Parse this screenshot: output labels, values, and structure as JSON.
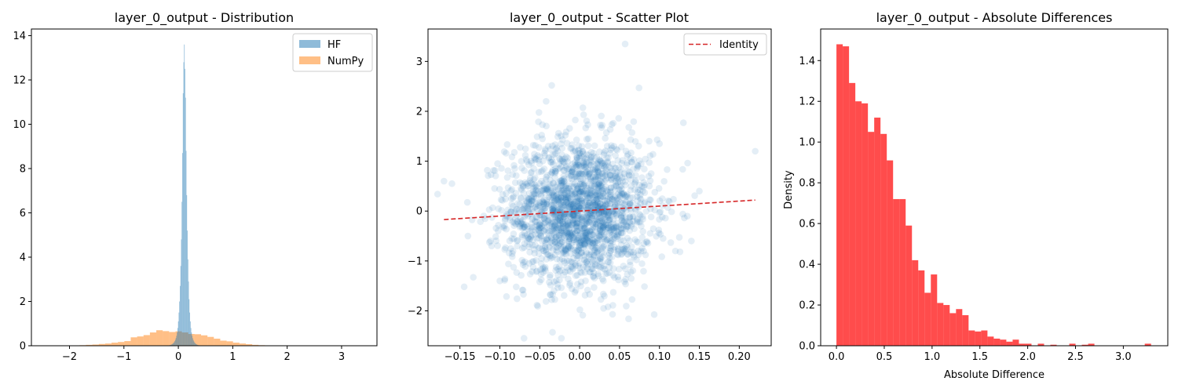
{
  "colors": {
    "hf": "#1f77b4",
    "numpy": "#ff7f0e",
    "scatter": "#1f77b4",
    "identity": "#d62728",
    "diff": "#ff0000"
  },
  "chart_data": [
    {
      "type": "histogram",
      "title": "layer_0_output - Distribution",
      "xlabel": "",
      "ylabel": "",
      "xlim": [
        -2.7,
        3.65
      ],
      "ylim": [
        0,
        14.3
      ],
      "xticks": [
        -2,
        -1,
        0,
        1,
        2,
        3
      ],
      "yticks": [
        0,
        2,
        4,
        6,
        8,
        10,
        12,
        14
      ],
      "legend": "top-right",
      "series": [
        {
          "name": "HF",
          "color": "#1f77b4",
          "alpha": 0.5,
          "bin_width": 0.011,
          "bin_start": -0.17,
          "density": [
            0.02,
            0.03,
            0.03,
            0.05,
            0.06,
            0.08,
            0.1,
            0.13,
            0.16,
            0.21,
            0.27,
            0.35,
            0.45,
            0.6,
            0.8,
            1.1,
            1.5,
            2.0,
            2.7,
            3.6,
            4.8,
            6.5,
            8.7,
            11.4,
            12.8,
            13.6,
            12.5,
            11.2,
            8.8,
            6.8,
            5.2,
            3.9,
            2.9,
            2.1,
            1.5,
            1.1,
            0.8,
            0.6,
            0.45,
            0.34,
            0.26,
            0.2,
            0.15,
            0.12,
            0.09,
            0.07,
            0.05,
            0.04,
            0.03,
            0.02,
            0.02,
            0.01
          ]
        },
        {
          "name": "NumPy",
          "color": "#ff7f0e",
          "alpha": 0.5,
          "bin_width": 0.1175,
          "bin_start": -2.52,
          "density": [
            0.003,
            0.003,
            0.005,
            0.008,
            0.012,
            0.018,
            0.025,
            0.04,
            0.055,
            0.08,
            0.1,
            0.14,
            0.17,
            0.21,
            0.38,
            0.42,
            0.48,
            0.6,
            0.7,
            0.66,
            0.62,
            0.65,
            0.6,
            0.53,
            0.52,
            0.47,
            0.4,
            0.32,
            0.23,
            0.2,
            0.14,
            0.1,
            0.07,
            0.04,
            0.025,
            0.018,
            0.012,
            0.008,
            0.005,
            0.003,
            0.002,
            0.001,
            0.001,
            0.001,
            0.001,
            0.001,
            0.001,
            0.001,
            0.001,
            0.001
          ]
        }
      ]
    },
    {
      "type": "scatter",
      "title": "layer_0_output - Scatter Plot",
      "xlabel": "",
      "ylabel": "",
      "xlim": [
        -0.19,
        0.24
      ],
      "ylim": [
        -2.7,
        3.65
      ],
      "xticks": [
        -0.15,
        -0.1,
        -0.05,
        0.0,
        0.05,
        0.1,
        0.15,
        0.2
      ],
      "xtick_labels": [
        "−0.15",
        "−0.10",
        "−0.05",
        "0.00",
        "0.05",
        "0.10",
        "0.15",
        "0.20"
      ],
      "yticks": [
        -2,
        -1,
        0,
        1,
        2,
        3
      ],
      "legend": "top-right",
      "points_color": "#1f77b4",
      "points_alpha": 0.12,
      "points_count": 2048,
      "x_std": 0.045,
      "y_std": 0.72,
      "outliers": [
        [
          -0.17,
          0.6
        ],
        [
          0.22,
          1.2
        ],
        [
          0.057,
          3.35
        ],
        [
          -0.035,
          2.52
        ],
        [
          -0.042,
          2.2
        ],
        [
          -0.034,
          -2.43
        ],
        [
          0.005,
          1.93
        ],
        [
          0.13,
          1.77
        ],
        [
          -0.16,
          0.55
        ],
        [
          0.14,
          -0.6
        ],
        [
          0.12,
          -0.8
        ],
        [
          -0.14,
          -0.5
        ],
        [
          0.15,
          0.4
        ],
        [
          0.1,
          1.35
        ],
        [
          -0.1,
          -1.4
        ],
        [
          0.03,
          -1.95
        ]
      ],
      "series": [
        {
          "name": "Identity",
          "color": "#d62728",
          "style": "dashed",
          "x": [
            -0.17,
            0.22
          ],
          "y": [
            -0.17,
            0.22
          ]
        }
      ]
    },
    {
      "type": "histogram",
      "title": "layer_0_output - Absolute Differences",
      "xlabel": "Absolute Difference",
      "ylabel": "Density",
      "xlim": [
        -0.165,
        3.465
      ],
      "ylim": [
        0,
        1.555
      ],
      "xticks": [
        0.0,
        0.5,
        1.0,
        1.5,
        2.0,
        2.5,
        3.0
      ],
      "yticks": [
        0.0,
        0.2,
        0.4,
        0.6,
        0.8,
        1.0,
        1.2,
        1.4
      ],
      "series": [
        {
          "name": "",
          "color": "#ff0000",
          "alpha": 0.7,
          "bin_width": 0.0658,
          "bin_start": 0.0,
          "density": [
            1.48,
            1.47,
            1.29,
            1.2,
            1.19,
            1.05,
            1.12,
            1.04,
            0.91,
            0.72,
            0.72,
            0.59,
            0.42,
            0.37,
            0.26,
            0.35,
            0.21,
            0.2,
            0.16,
            0.18,
            0.15,
            0.075,
            0.07,
            0.075,
            0.045,
            0.035,
            0.03,
            0.02,
            0.03,
            0.01,
            0.01,
            0.0,
            0.01,
            0.0,
            0.005,
            0.0,
            0.0,
            0.01,
            0.0,
            0.005,
            0.01,
            0.0,
            0.0,
            0.0,
            0.0,
            0.0,
            0.0,
            0.0,
            0.0,
            0.01
          ]
        }
      ]
    }
  ]
}
